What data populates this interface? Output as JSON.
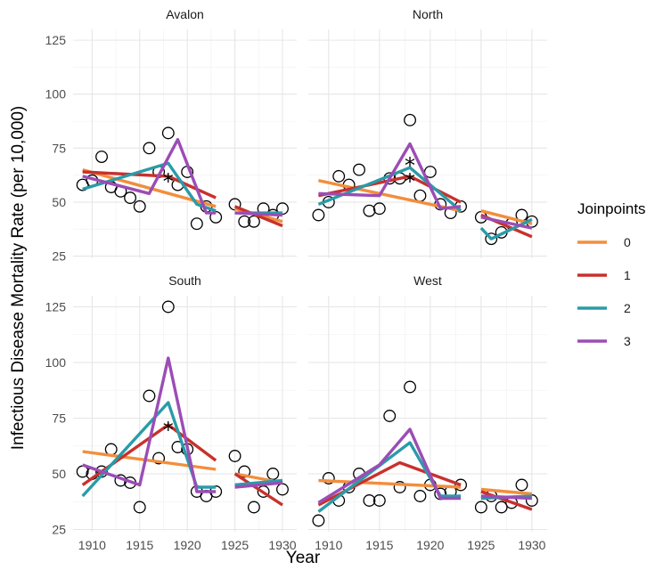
{
  "chart_data": {
    "type": "line",
    "xlabel": "Year",
    "ylabel": "Infectious Disease Mortality Rate (per 10,000)",
    "xlim": [
      1908,
      1931.5
    ],
    "ylim": [
      24,
      130
    ],
    "x_ticks": [
      1910,
      1915,
      1920,
      1925,
      1930
    ],
    "y_ticks": [
      25,
      50,
      75,
      100,
      125
    ],
    "grid": true,
    "legend": {
      "title": "Joinpoints",
      "position": "right",
      "entries": [
        {
          "label": "0",
          "color": "#F28E3C"
        },
        {
          "label": "1",
          "color": "#C8312D"
        },
        {
          "label": "2",
          "color": "#2A9BA8"
        },
        {
          "label": "3",
          "color": "#9B4DB5"
        }
      ]
    },
    "panels": [
      {
        "title": "Avalon",
        "points": [
          [
            1909,
            58
          ],
          [
            1910,
            60
          ],
          [
            1911,
            71
          ],
          [
            1912,
            57
          ],
          [
            1913,
            55
          ],
          [
            1914,
            52
          ],
          [
            1915,
            48
          ],
          [
            1916,
            75
          ],
          [
            1917,
            64
          ],
          [
            1918,
            82
          ],
          [
            1919,
            58
          ],
          [
            1920,
            64
          ],
          [
            1921,
            40
          ],
          [
            1922,
            48
          ],
          [
            1923,
            43
          ],
          [
            1925,
            49
          ],
          [
            1926,
            41
          ],
          [
            1927,
            41
          ],
          [
            1928,
            47
          ],
          [
            1929,
            44
          ],
          [
            1930,
            47
          ]
        ],
        "stars": [
          1918
        ],
        "fits": {
          "0": [
            [
              [
                1909,
                65
              ],
              [
                1923,
                48
              ]
            ],
            [
              [
                1925,
                47
              ],
              [
                1930,
                41
              ]
            ]
          ],
          "1": [
            [
              [
                1909,
                64
              ],
              [
                1918,
                62
              ],
              [
                1923,
                52
              ]
            ],
            [
              [
                1925,
                48
              ],
              [
                1930,
                39
              ]
            ]
          ],
          "2": [
            [
              [
                1909,
                56
              ],
              [
                1918,
                68
              ],
              [
                1921,
                49
              ],
              [
                1923,
                46
              ]
            ],
            [
              [
                1925,
                45
              ],
              [
                1930,
                45
              ]
            ]
          ],
          "3": [
            [
              [
                1909,
                62
              ],
              [
                1916,
                54
              ],
              [
                1919,
                79
              ],
              [
                1922,
                45
              ],
              [
                1923,
                45
              ]
            ],
            [
              [
                1925,
                45
              ],
              [
                1930,
                44
              ]
            ]
          ]
        }
      },
      {
        "title": "North",
        "points": [
          [
            1909,
            44
          ],
          [
            1910,
            50
          ],
          [
            1911,
            62
          ],
          [
            1912,
            58
          ],
          [
            1913,
            65
          ],
          [
            1914,
            46
          ],
          [
            1915,
            47
          ],
          [
            1916,
            61
          ],
          [
            1917,
            61
          ],
          [
            1918,
            88
          ],
          [
            1919,
            53
          ],
          [
            1920,
            64
          ],
          [
            1921,
            49
          ],
          [
            1922,
            45
          ],
          [
            1923,
            48
          ],
          [
            1925,
            43
          ],
          [
            1926,
            33
          ],
          [
            1927,
            36
          ],
          [
            1928,
            40
          ],
          [
            1929,
            44
          ],
          [
            1930,
            41
          ]
        ],
        "stars": [
          1918,
          1918
        ],
        "fits": {
          "0": [
            [
              [
                1909,
                60
              ],
              [
                1923,
                46
              ]
            ],
            [
              [
                1925,
                46
              ],
              [
                1930,
                40
              ]
            ]
          ],
          "1": [
            [
              [
                1909,
                53
              ],
              [
                1918,
                62
              ],
              [
                1923,
                50
              ]
            ],
            [
              [
                1925,
                44
              ],
              [
                1930,
                34
              ]
            ]
          ],
          "2": [
            [
              [
                1909,
                49
              ],
              [
                1918,
                66
              ],
              [
                1923,
                46
              ]
            ],
            [
              [
                1925,
                38
              ],
              [
                1926,
                33
              ],
              [
                1930,
                42
              ]
            ]
          ],
          "3": [
            [
              [
                1909,
                54
              ],
              [
                1915,
                53
              ],
              [
                1918,
                77
              ],
              [
                1921,
                47
              ],
              [
                1923,
                48
              ]
            ],
            [
              [
                1925,
                43
              ],
              [
                1930,
                38
              ]
            ]
          ]
        }
      },
      {
        "title": "South",
        "points": [
          [
            1909,
            51
          ],
          [
            1910,
            50
          ],
          [
            1911,
            51
          ],
          [
            1912,
            61
          ],
          [
            1913,
            47
          ],
          [
            1914,
            46
          ],
          [
            1915,
            35
          ],
          [
            1916,
            85
          ],
          [
            1917,
            57
          ],
          [
            1918,
            125
          ],
          [
            1919,
            62
          ],
          [
            1920,
            61
          ],
          [
            1921,
            42
          ],
          [
            1922,
            40
          ],
          [
            1923,
            42
          ],
          [
            1925,
            58
          ],
          [
            1926,
            51
          ],
          [
            1927,
            35
          ],
          [
            1928,
            42
          ],
          [
            1929,
            50
          ],
          [
            1930,
            43
          ]
        ],
        "stars": [
          1918
        ],
        "fits": {
          "0": [
            [
              [
                1909,
                60
              ],
              [
                1923,
                52
              ]
            ],
            [
              [
                1925,
                50
              ],
              [
                1930,
                46
              ]
            ]
          ],
          "1": [
            [
              [
                1909,
                45
              ],
              [
                1918,
                72
              ],
              [
                1923,
                56
              ]
            ],
            [
              [
                1925,
                50
              ],
              [
                1930,
                36
              ]
            ]
          ],
          "2": [
            [
              [
                1909,
                40
              ],
              [
                1918,
                82
              ],
              [
                1921,
                44
              ],
              [
                1923,
                44
              ]
            ],
            [
              [
                1925,
                45
              ],
              [
                1930,
                47
              ]
            ]
          ],
          "3": [
            [
              [
                1909,
                54
              ],
              [
                1915,
                45
              ],
              [
                1918,
                102
              ],
              [
                1921,
                42
              ],
              [
                1923,
                42
              ]
            ],
            [
              [
                1925,
                44
              ],
              [
                1930,
                46
              ]
            ]
          ]
        }
      },
      {
        "title": "West",
        "points": [
          [
            1909,
            29
          ],
          [
            1910,
            48
          ],
          [
            1911,
            38
          ],
          [
            1912,
            44
          ],
          [
            1913,
            50
          ],
          [
            1914,
            38
          ],
          [
            1915,
            38
          ],
          [
            1916,
            76
          ],
          [
            1917,
            44
          ],
          [
            1918,
            89
          ],
          [
            1919,
            40
          ],
          [
            1920,
            45
          ],
          [
            1921,
            41
          ],
          [
            1922,
            42
          ],
          [
            1923,
            45
          ],
          [
            1925,
            35
          ],
          [
            1926,
            40
          ],
          [
            1927,
            35
          ],
          [
            1928,
            37
          ],
          [
            1929,
            45
          ],
          [
            1930,
            38
          ]
        ],
        "stars": [],
        "fits": {
          "0": [
            [
              [
                1909,
                47
              ],
              [
                1923,
                44
              ]
            ],
            [
              [
                1925,
                43
              ],
              [
                1930,
                41
              ]
            ]
          ],
          "1": [
            [
              [
                1909,
                36
              ],
              [
                1917,
                55
              ],
              [
                1923,
                45
              ]
            ],
            [
              [
                1925,
                42
              ],
              [
                1930,
                34
              ]
            ]
          ],
          "2": [
            [
              [
                1909,
                33
              ],
              [
                1918,
                64
              ],
              [
                1921,
                40
              ],
              [
                1923,
                40
              ]
            ],
            [
              [
                1925,
                39
              ],
              [
                1930,
                40
              ]
            ]
          ],
          "3": [
            [
              [
                1909,
                37
              ],
              [
                1915,
                54
              ],
              [
                1918,
                70
              ],
              [
                1921,
                39
              ],
              [
                1923,
                39
              ]
            ],
            [
              [
                1925,
                40
              ],
              [
                1930,
                39
              ]
            ]
          ]
        }
      }
    ]
  }
}
